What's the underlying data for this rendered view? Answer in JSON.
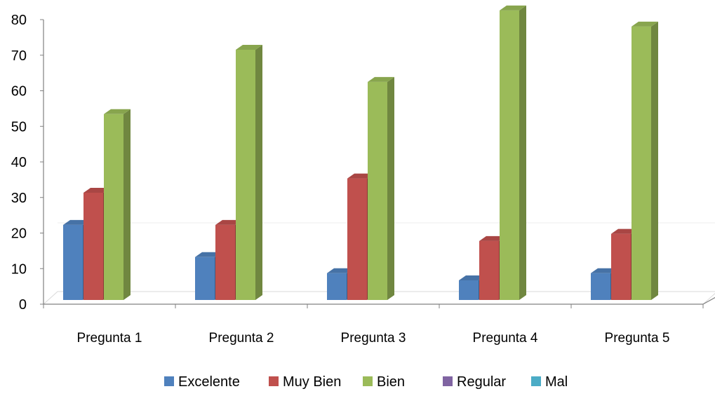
{
  "chart_data": {
    "type": "bar",
    "title": "",
    "xlabel": "",
    "ylabel": "",
    "ylim": [
      0,
      80
    ],
    "yticks": [
      0,
      10,
      20,
      30,
      40,
      50,
      60,
      70,
      80
    ],
    "categories": [
      "Pregunta 1",
      "Pregunta 2",
      "Pregunta 3",
      "Pregunta 4",
      "Pregunta 5"
    ],
    "series": [
      {
        "name": "Excelente",
        "color": "#4f81bd",
        "values": [
          21,
          12,
          7.5,
          5.5,
          7.5
        ]
      },
      {
        "name": "Muy Bien",
        "color": "#c0504d",
        "values": [
          30,
          21,
          34,
          16.5,
          18.5
        ]
      },
      {
        "name": "Bien",
        "color": "#9bbb59",
        "values": [
          52,
          70,
          61,
          81,
          76.5
        ]
      },
      {
        "name": "Regular",
        "color": "#8064a2",
        "values": [
          0,
          0,
          0,
          0,
          0
        ]
      },
      {
        "name": "Mal",
        "color": "#4bacc6",
        "values": [
          0,
          0,
          0,
          0,
          0
        ]
      }
    ],
    "legend_position": "bottom",
    "grid": false,
    "style": "3d-column"
  }
}
